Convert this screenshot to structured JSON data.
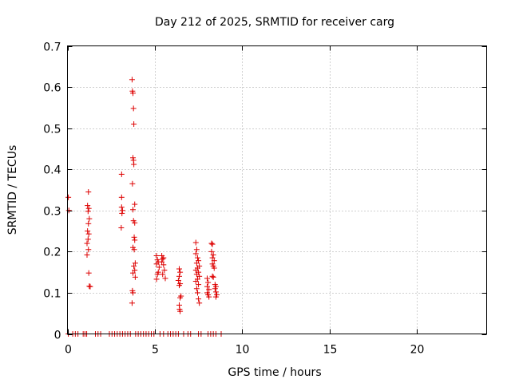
{
  "chart_data": {
    "type": "scatter",
    "title": "Day 212 of 2025, SRMTID for receiver carg",
    "xlabel": "GPS time / hours",
    "ylabel": "SRMTID / TECUs",
    "xlim": [
      0,
      24
    ],
    "ylim": [
      0,
      0.7
    ],
    "xticks": [
      0,
      5,
      10,
      15,
      20
    ],
    "yticks": [
      0,
      0.1,
      0.2,
      0.3,
      0.4,
      0.5,
      0.6,
      0.7
    ],
    "xtick_labels": [
      "0",
      "5",
      "10",
      "15",
      "20"
    ],
    "ytick_labels": [
      "0",
      "0.1",
      "0.2",
      "0.3",
      "0.4",
      "0.5",
      "0.6",
      "0.7"
    ],
    "grid": true,
    "marker": "+",
    "marker_color": "#dd0000",
    "series": [
      {
        "name": "SRMTID",
        "points": [
          [
            0.05,
            0.332
          ],
          [
            0.08,
            0.3
          ],
          [
            1.2,
            0.345
          ],
          [
            1.15,
            0.312
          ],
          [
            1.22,
            0.305
          ],
          [
            1.18,
            0.298
          ],
          [
            1.25,
            0.28
          ],
          [
            1.2,
            0.268
          ],
          [
            1.15,
            0.25
          ],
          [
            1.22,
            0.243
          ],
          [
            1.18,
            0.23
          ],
          [
            1.12,
            0.22
          ],
          [
            1.2,
            0.205
          ],
          [
            1.12,
            0.192
          ],
          [
            1.22,
            0.148
          ],
          [
            1.25,
            0.116
          ],
          [
            1.3,
            0.115
          ],
          [
            3.1,
            0.388
          ],
          [
            3.1,
            0.332
          ],
          [
            3.1,
            0.308
          ],
          [
            3.15,
            0.3
          ],
          [
            3.12,
            0.293
          ],
          [
            3.08,
            0.258
          ],
          [
            3.7,
            0.618
          ],
          [
            3.72,
            0.59
          ],
          [
            3.75,
            0.585
          ],
          [
            3.78,
            0.548
          ],
          [
            3.8,
            0.51
          ],
          [
            3.75,
            0.428
          ],
          [
            3.78,
            0.422
          ],
          [
            3.8,
            0.412
          ],
          [
            3.72,
            0.365
          ],
          [
            3.85,
            0.315
          ],
          [
            3.75,
            0.302
          ],
          [
            3.78,
            0.275
          ],
          [
            3.85,
            0.27
          ],
          [
            3.82,
            0.235
          ],
          [
            3.85,
            0.228
          ],
          [
            3.75,
            0.21
          ],
          [
            3.82,
            0.205
          ],
          [
            3.88,
            0.172
          ],
          [
            3.8,
            0.165
          ],
          [
            3.85,
            0.155
          ],
          [
            3.75,
            0.148
          ],
          [
            3.88,
            0.138
          ],
          [
            3.72,
            0.105
          ],
          [
            3.75,
            0.1
          ],
          [
            3.7,
            0.075
          ],
          [
            5.1,
            0.19
          ],
          [
            5.15,
            0.18
          ],
          [
            5.2,
            0.175
          ],
          [
            5.1,
            0.17
          ],
          [
            5.25,
            0.162
          ],
          [
            5.2,
            0.15
          ],
          [
            5.15,
            0.145
          ],
          [
            5.1,
            0.133
          ],
          [
            5.4,
            0.19
          ],
          [
            5.45,
            0.182
          ],
          [
            5.5,
            0.185
          ],
          [
            5.4,
            0.175
          ],
          [
            5.5,
            0.168
          ],
          [
            5.55,
            0.155
          ],
          [
            5.45,
            0.145
          ],
          [
            5.6,
            0.135
          ],
          [
            6.4,
            0.158
          ],
          [
            6.45,
            0.15
          ],
          [
            6.4,
            0.14
          ],
          [
            6.35,
            0.13
          ],
          [
            6.45,
            0.122
          ],
          [
            6.4,
            0.118
          ],
          [
            6.5,
            0.092
          ],
          [
            6.45,
            0.088
          ],
          [
            6.4,
            0.07
          ],
          [
            6.42,
            0.06
          ],
          [
            6.45,
            0.055
          ],
          [
            7.35,
            0.222
          ],
          [
            7.4,
            0.205
          ],
          [
            7.35,
            0.195
          ],
          [
            7.45,
            0.185
          ],
          [
            7.5,
            0.178
          ],
          [
            7.4,
            0.172
          ],
          [
            7.55,
            0.165
          ],
          [
            7.45,
            0.16
          ],
          [
            7.35,
            0.155
          ],
          [
            7.5,
            0.15
          ],
          [
            7.4,
            0.145
          ],
          [
            7.55,
            0.14
          ],
          [
            7.45,
            0.133
          ],
          [
            7.35,
            0.128
          ],
          [
            7.5,
            0.12
          ],
          [
            7.4,
            0.11
          ],
          [
            7.45,
            0.1
          ],
          [
            7.5,
            0.085
          ],
          [
            7.55,
            0.075
          ],
          [
            8.0,
            0.135
          ],
          [
            8.05,
            0.125
          ],
          [
            8.0,
            0.115
          ],
          [
            8.1,
            0.108
          ],
          [
            8.0,
            0.1
          ],
          [
            8.05,
            0.095
          ],
          [
            8.1,
            0.09
          ],
          [
            8.25,
            0.22
          ],
          [
            8.3,
            0.218
          ],
          [
            8.25,
            0.2
          ],
          [
            8.35,
            0.192
          ],
          [
            8.3,
            0.185
          ],
          [
            8.4,
            0.178
          ],
          [
            8.3,
            0.17
          ],
          [
            8.35,
            0.165
          ],
          [
            8.4,
            0.16
          ],
          [
            8.3,
            0.14
          ],
          [
            8.35,
            0.138
          ],
          [
            8.45,
            0.12
          ],
          [
            8.5,
            0.115
          ],
          [
            8.45,
            0.11
          ],
          [
            8.5,
            0.102
          ],
          [
            8.55,
            0.095
          ],
          [
            8.5,
            0.09
          ],
          [
            0.05,
            0
          ],
          [
            0.3,
            0
          ],
          [
            0.45,
            0
          ],
          [
            0.6,
            0
          ],
          [
            0.9,
            0
          ],
          [
            1.0,
            0
          ],
          [
            1.1,
            0
          ],
          [
            1.6,
            0
          ],
          [
            1.75,
            0
          ],
          [
            1.9,
            0
          ],
          [
            2.4,
            0
          ],
          [
            2.55,
            0
          ],
          [
            2.7,
            0
          ],
          [
            2.85,
            0
          ],
          [
            3.0,
            0
          ],
          [
            3.15,
            0
          ],
          [
            3.3,
            0
          ],
          [
            3.45,
            0
          ],
          [
            3.6,
            0
          ],
          [
            3.9,
            0
          ],
          [
            4.05,
            0
          ],
          [
            4.2,
            0
          ],
          [
            4.35,
            0
          ],
          [
            4.5,
            0
          ],
          [
            4.65,
            0
          ],
          [
            4.8,
            0
          ],
          [
            4.95,
            0
          ],
          [
            5.3,
            0
          ],
          [
            5.5,
            0
          ],
          [
            5.75,
            0
          ],
          [
            5.9,
            0
          ],
          [
            6.05,
            0
          ],
          [
            6.2,
            0
          ],
          [
            6.35,
            0
          ],
          [
            6.65,
            0
          ],
          [
            6.9,
            0
          ],
          [
            7.05,
            0
          ],
          [
            7.5,
            0
          ],
          [
            7.65,
            0
          ],
          [
            8.05,
            0
          ],
          [
            8.2,
            0
          ],
          [
            8.35,
            0
          ],
          [
            8.5,
            0
          ],
          [
            8.8,
            0
          ]
        ]
      }
    ]
  }
}
